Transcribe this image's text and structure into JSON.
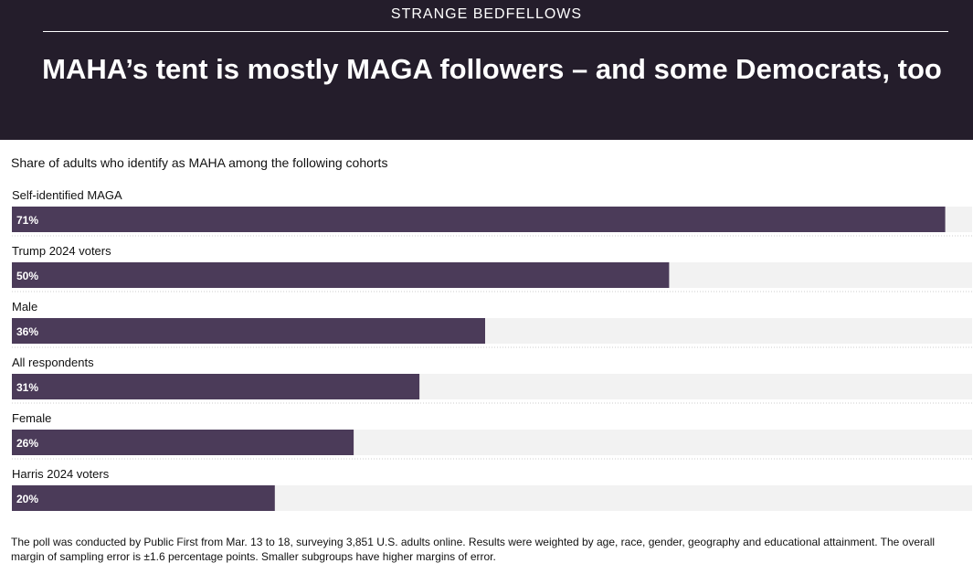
{
  "kicker": "STRANGE BEDFELLOWS",
  "title": "MAHA’s tent is mostly MAGA followers – and some Democrats, too",
  "subtitle": "Share of adults who identify as MAHA among the following cohorts",
  "footnote": "The poll was conducted by Public First from Mar. 13 to 18, surveying 3,851 U.S. adults online. Results were weighted by age, race, gender, geography and educational attainment. The overall margin of sampling error is ±1.6 percentage points. Smaller subgroups have higher margins of error.",
  "colors": {
    "header_bg": "#241d2b",
    "bar": "#4b3b59",
    "track": "#f2f2f2",
    "divider": "#cccccc"
  },
  "chart_data": {
    "type": "bar",
    "orientation": "horizontal",
    "title": "MAHA’s tent is mostly MAGA followers – and some Democrats, too",
    "ylabel": "Share of adults who identify as MAHA",
    "categories": [
      "Self-identified MAGA",
      "Trump 2024 voters",
      "Male",
      "All respondents",
      "Female",
      "Harris 2024 voters"
    ],
    "values": [
      71,
      50,
      36,
      31,
      26,
      20
    ],
    "value_labels": [
      "71%",
      "50%",
      "36%",
      "31%",
      "26%",
      "20%"
    ],
    "xlim": [
      0,
      72
    ],
    "unit": "%",
    "grid": false
  }
}
